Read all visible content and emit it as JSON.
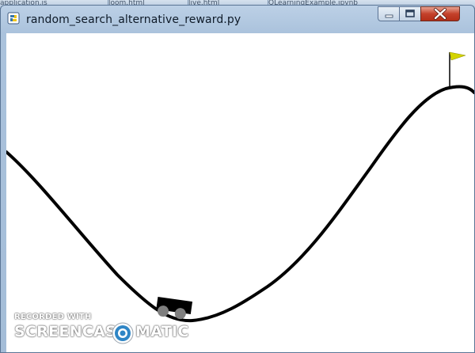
{
  "background_tabs": [
    {
      "label": "application.js"
    },
    {
      "label": "loom.html"
    },
    {
      "label": "live.html"
    },
    {
      "label": "QLearningExample.ipynb"
    }
  ],
  "window": {
    "title": "random_search_alternative_reward.py",
    "app_icon": "python-icon",
    "controls": {
      "minimize_icon": "minimize-icon",
      "maximize_icon": "maximize-icon",
      "close_icon": "close-icon"
    }
  },
  "game": {
    "environment": "MountainCar",
    "flag_color": "#d4d400",
    "track_color": "#000000",
    "car_color": "#000000",
    "wheel_color": "#7f7f7f"
  },
  "watermark": {
    "top_text": "RECORDED WITH",
    "left_text": "SCREENCAST",
    "right_text": "MATIC",
    "logo_icon": "screencast-o-matic-logo",
    "accent_color": "#2f86c6"
  }
}
